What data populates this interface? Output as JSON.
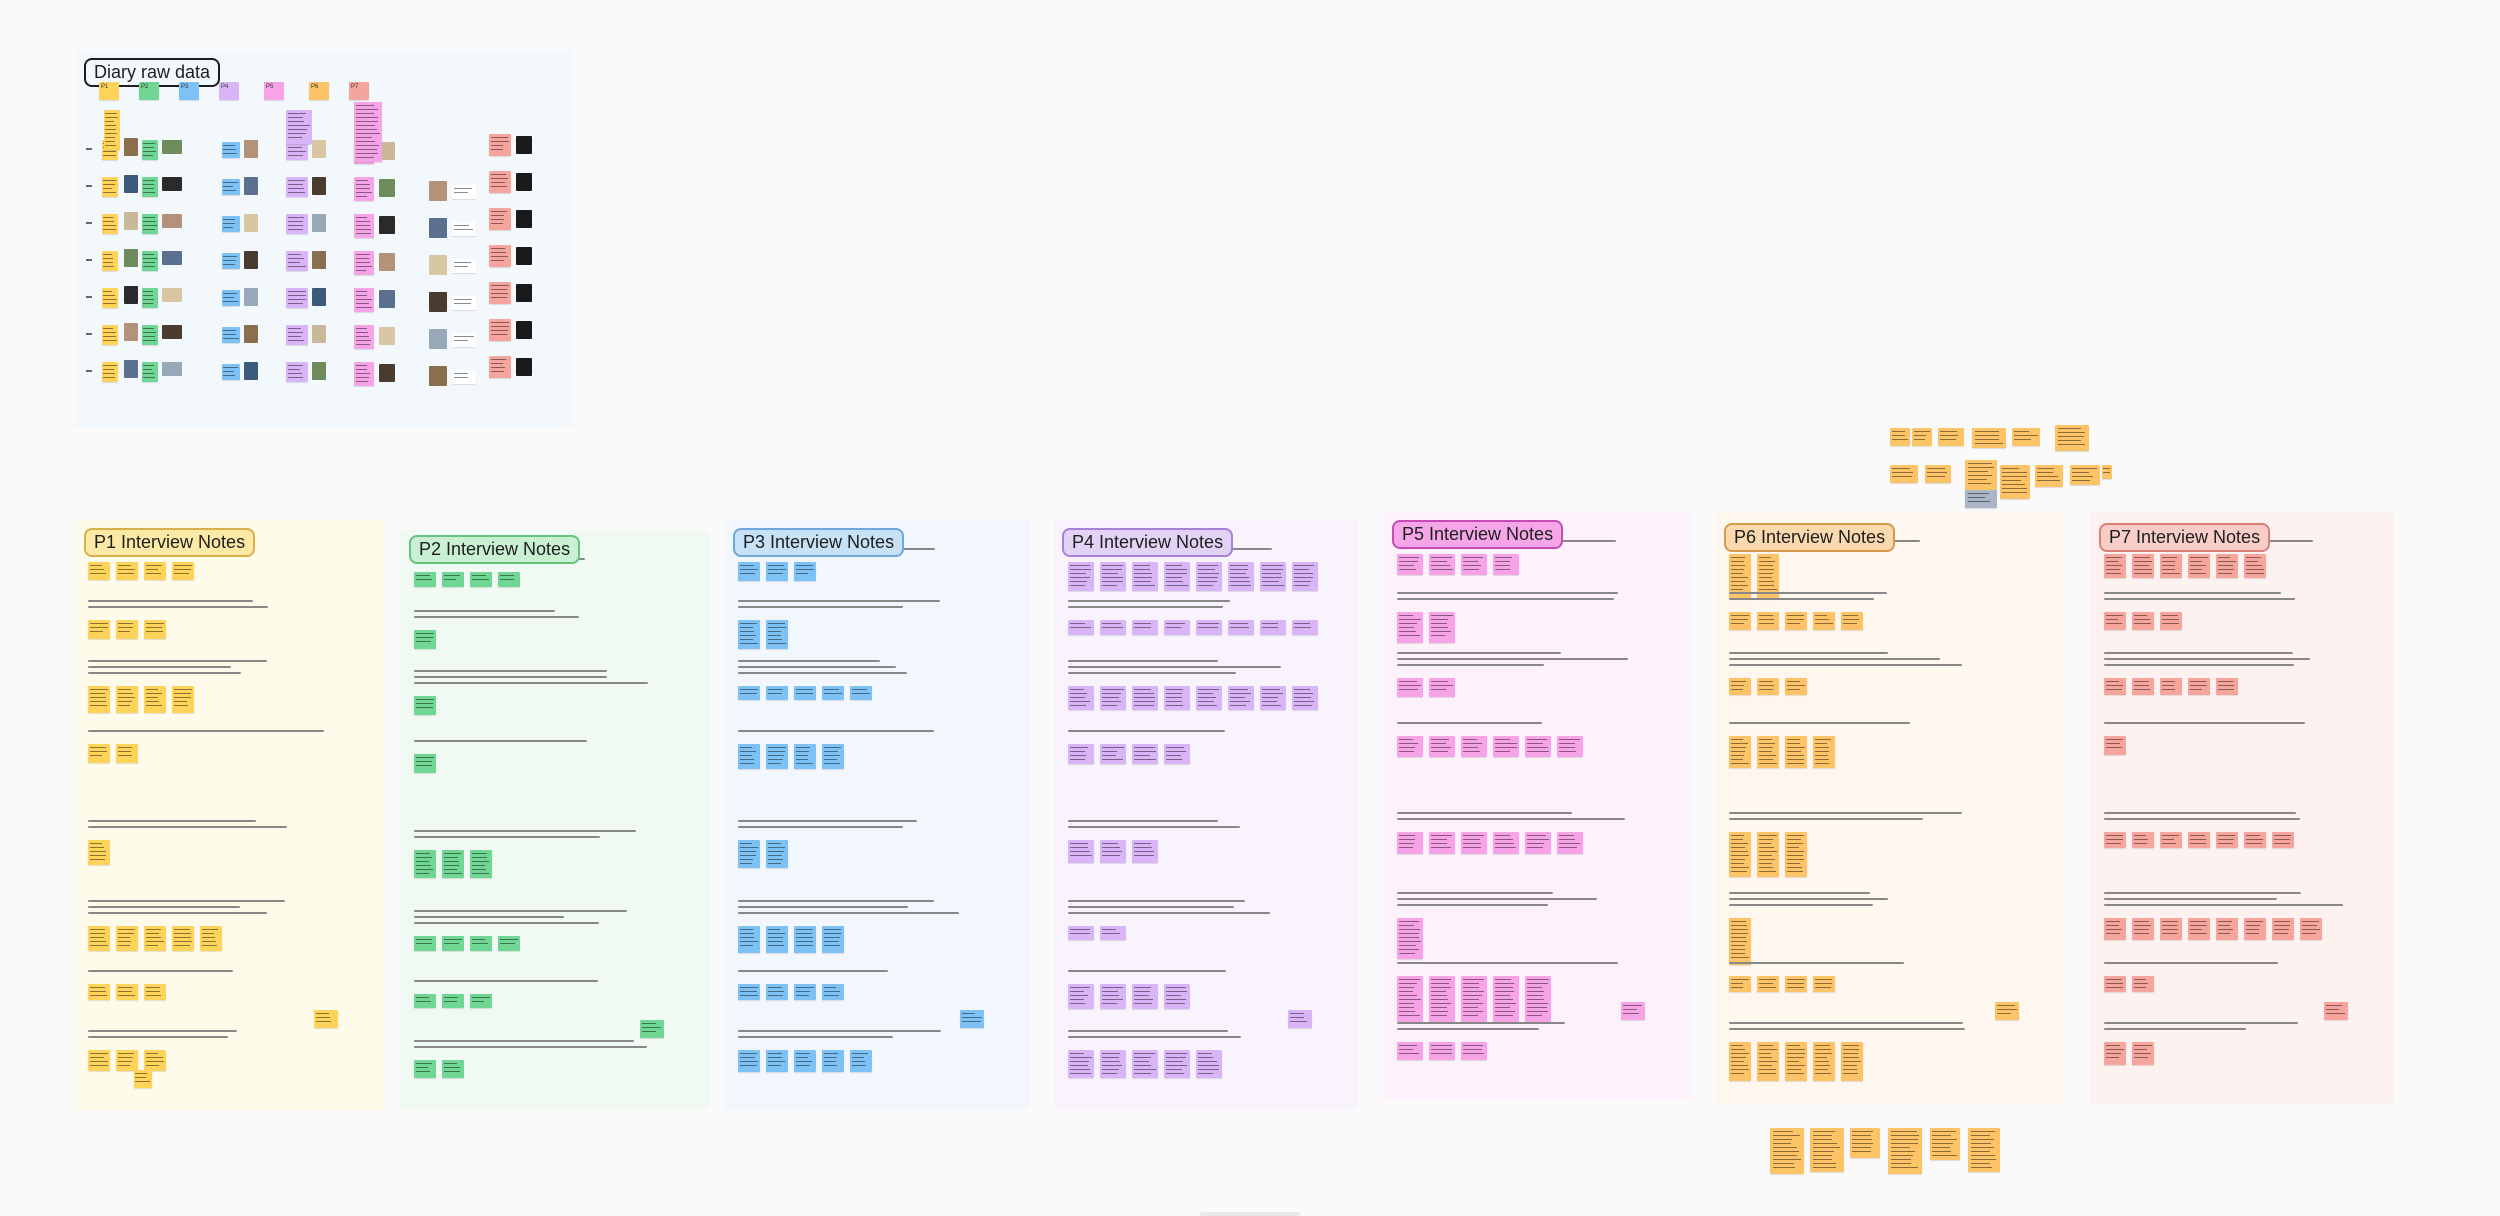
{
  "canvas": {
    "background": "#fafafa"
  },
  "diary": {
    "title": "Diary raw data",
    "column_labels": [
      "P1",
      "P2",
      "P3",
      "P4",
      "P5",
      "P6",
      "P7"
    ],
    "title_color": "#cfe4f7",
    "title_border": "#7ab3e3"
  },
  "sections": [
    {
      "title": "P1 Interview Notes",
      "fill": "#fffbea",
      "tag_bg": "#fde9a6",
      "tag_border": "#d6b04c",
      "sticky": "#fdd35a"
    },
    {
      "title": "P2 Interview Notes",
      "fill": "#f0faf2",
      "tag_bg": "#c9f0d3",
      "tag_border": "#67c27e",
      "sticky": "#6fd694"
    },
    {
      "title": "P3 Interview Notes",
      "fill": "#f1f7fd",
      "tag_bg": "#c7e1f7",
      "tag_border": "#6fa8dc",
      "sticky": "#7dc1f5"
    },
    {
      "title": "P4 Interview Notes",
      "fill": "#f8f3fd",
      "tag_bg": "#e2d2f6",
      "tag_border": "#a781d8",
      "sticky": "#d9b5f7"
    },
    {
      "title": "P5 Interview Notes",
      "fill": "#fdf2fb",
      "tag_bg": "#f4a6e8",
      "tag_border": "#c94bb6",
      "sticky": "#f6a3e7"
    },
    {
      "title": "P6 Interview Notes",
      "fill": "#fef7ef",
      "tag_bg": "#fbd9ae",
      "tag_border": "#d69a4c",
      "sticky": "#fdc367"
    },
    {
      "title": "P7 Interview Notes",
      "fill": "#fdf2f0",
      "tag_bg": "#f8cdc7",
      "tag_border": "#d98077",
      "sticky": "#f6a59c"
    }
  ]
}
